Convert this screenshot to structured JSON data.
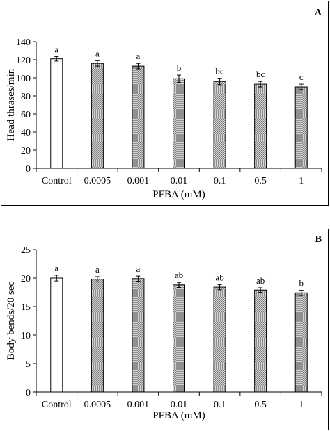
{
  "chart_data": [
    {
      "panel_label": "A",
      "type": "bar",
      "categories": [
        "Control",
        "0.0005",
        "0.001",
        "0.01",
        "0.1",
        "0.5",
        "1"
      ],
      "values": [
        121,
        116,
        113,
        99,
        96,
        93,
        90
      ],
      "errors": [
        2.5,
        3,
        3,
        4,
        3.5,
        3,
        3
      ],
      "significance": [
        "a",
        "a",
        "a",
        "b",
        "bc",
        "bc",
        "c"
      ],
      "bar_fill": [
        "open",
        "hatched",
        "hatched",
        "hatched",
        "hatched",
        "hatched",
        "hatched"
      ],
      "xlabel": "PFBA (mM)",
      "ylabel": "Head thrases/min",
      "ylim": [
        0,
        140
      ],
      "yticks": [
        0,
        20,
        40,
        60,
        80,
        100,
        120,
        140
      ],
      "grid": false
    },
    {
      "panel_label": "B",
      "type": "bar",
      "categories": [
        "Control",
        "0.0005",
        "0.001",
        "0.01",
        "0.1",
        "0.5",
        "1"
      ],
      "values": [
        20.0,
        19.8,
        19.9,
        18.8,
        18.4,
        17.9,
        17.4
      ],
      "errors": [
        0.5,
        0.45,
        0.45,
        0.45,
        0.45,
        0.4,
        0.45
      ],
      "significance": [
        "a",
        "a",
        "a",
        "ab",
        "ab",
        "ab",
        "b"
      ],
      "bar_fill": [
        "open",
        "hatched",
        "hatched",
        "hatched",
        "hatched",
        "hatched",
        "hatched"
      ],
      "xlabel": "PFBA (mM)",
      "ylabel": "Body bends/20 sec",
      "ylim": [
        0,
        25
      ],
      "yticks": [
        0,
        5,
        10,
        15,
        20,
        25
      ],
      "grid": false
    }
  ],
  "colors": {
    "bar_stroke": "#000000",
    "open_fill": "#ffffff",
    "hatch_bg": "#ffffff",
    "hatch_line": "#7a7a7a"
  }
}
